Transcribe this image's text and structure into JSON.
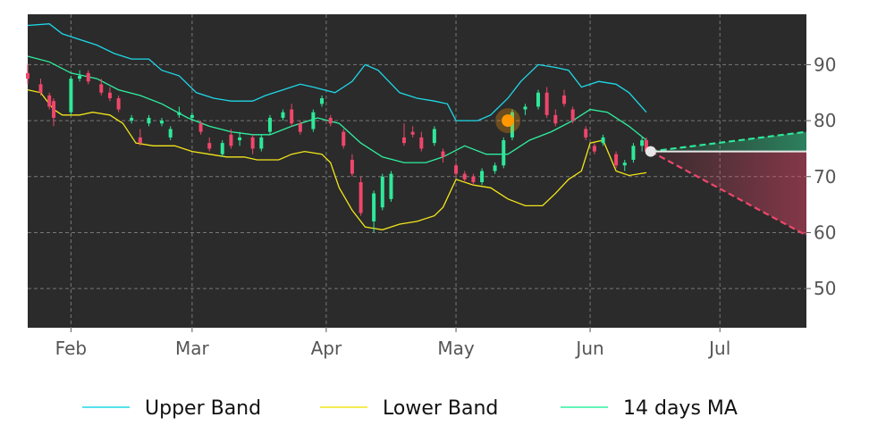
{
  "chart_data": {
    "type": "candlestick",
    "x_tick_labels": [
      "Feb",
      "Mar",
      "Apr",
      "May",
      "Jun",
      "Jul"
    ],
    "x_tick_dates": [
      "2021-02-01",
      "2021-03-01",
      "2021-04-01",
      "2021-05-01",
      "2021-06-01",
      "2021-07-01"
    ],
    "x_range": [
      "2021-01-22",
      "2021-07-21"
    ],
    "y_tick_labels": [
      "50",
      "60",
      "70",
      "80",
      "90"
    ],
    "y_ticks": [
      50,
      60,
      70,
      80,
      90
    ],
    "ylim": [
      43,
      99
    ],
    "y_axis_position": "right",
    "grid": true,
    "legend_position": "bottom",
    "colors": {
      "background": "#2b2b2b",
      "grid": "#8a8a8a",
      "up_candle": "#2ee89a",
      "down_candle": "#f0466b",
      "upper_band": "#1ed8e8",
      "lower_band": "#f2e61a",
      "ma": "#2ef0a0",
      "marker": "#ff9800",
      "forecast_up": "#2ee89a",
      "forecast_down": "#f0466b",
      "current_level": "#e6e6e6"
    },
    "series": [
      {
        "name": "Upper Band",
        "color": "#1ed8e8",
        "points": [
          [
            "2021-01-22",
            97.0
          ],
          [
            "2021-01-27",
            97.3
          ],
          [
            "2021-01-30",
            95.5
          ],
          [
            "2021-02-03",
            94.5
          ],
          [
            "2021-02-07",
            93.5
          ],
          [
            "2021-02-11",
            92.0
          ],
          [
            "2021-02-15",
            91.0
          ],
          [
            "2021-02-19",
            91.0
          ],
          [
            "2021-02-22",
            89.0
          ],
          [
            "2021-02-26",
            88.0
          ],
          [
            "2021-03-02",
            85.0
          ],
          [
            "2021-03-06",
            84.0
          ],
          [
            "2021-03-10",
            83.5
          ],
          [
            "2021-03-15",
            83.5
          ],
          [
            "2021-03-18",
            84.5
          ],
          [
            "2021-03-22",
            85.5
          ],
          [
            "2021-03-26",
            86.5
          ],
          [
            "2021-03-29",
            86.0
          ],
          [
            "2021-04-03",
            85.0
          ],
          [
            "2021-04-07",
            87.0
          ],
          [
            "2021-04-10",
            90.0
          ],
          [
            "2021-04-13",
            89.0
          ],
          [
            "2021-04-18",
            85.0
          ],
          [
            "2021-04-22",
            84.0
          ],
          [
            "2021-04-26",
            83.5
          ],
          [
            "2021-04-29",
            83.0
          ],
          [
            "2021-05-01",
            80.0
          ],
          [
            "2021-05-06",
            80.0
          ],
          [
            "2021-05-09",
            81.0
          ],
          [
            "2021-05-13",
            84.0
          ],
          [
            "2021-05-16",
            87.0
          ],
          [
            "2021-05-20",
            90.0
          ],
          [
            "2021-05-24",
            89.5
          ],
          [
            "2021-05-27",
            89.0
          ],
          [
            "2021-05-30",
            86.0
          ],
          [
            "2021-06-03",
            87.0
          ],
          [
            "2021-06-07",
            86.5
          ],
          [
            "2021-06-10",
            85.0
          ],
          [
            "2021-06-14",
            81.5
          ]
        ]
      },
      {
        "name": "Lower Band",
        "color": "#f2e61a",
        "points": [
          [
            "2021-01-22",
            85.5
          ],
          [
            "2021-01-25",
            85.0
          ],
          [
            "2021-01-28",
            82.0
          ],
          [
            "2021-01-30",
            81.0
          ],
          [
            "2021-02-03",
            81.0
          ],
          [
            "2021-02-06",
            81.5
          ],
          [
            "2021-02-10",
            81.0
          ],
          [
            "2021-02-13",
            79.5
          ],
          [
            "2021-02-16",
            76.0
          ],
          [
            "2021-02-20",
            75.5
          ],
          [
            "2021-02-25",
            75.5
          ],
          [
            "2021-03-01",
            74.5
          ],
          [
            "2021-03-05",
            74.0
          ],
          [
            "2021-03-09",
            73.5
          ],
          [
            "2021-03-13",
            73.5
          ],
          [
            "2021-03-16",
            73.0
          ],
          [
            "2021-03-21",
            73.0
          ],
          [
            "2021-03-24",
            74.0
          ],
          [
            "2021-03-27",
            74.5
          ],
          [
            "2021-03-31",
            74.0
          ],
          [
            "2021-04-02",
            72.5
          ],
          [
            "2021-04-04",
            68.0
          ],
          [
            "2021-04-07",
            64.0
          ],
          [
            "2021-04-10",
            61.0
          ],
          [
            "2021-04-14",
            60.5
          ],
          [
            "2021-04-18",
            61.5
          ],
          [
            "2021-04-22",
            62.0
          ],
          [
            "2021-04-26",
            63.0
          ],
          [
            "2021-04-28",
            64.5
          ],
          [
            "2021-05-01",
            69.5
          ],
          [
            "2021-05-05",
            68.5
          ],
          [
            "2021-05-09",
            68.0
          ],
          [
            "2021-05-13",
            66.0
          ],
          [
            "2021-05-17",
            64.8
          ],
          [
            "2021-05-21",
            64.8
          ],
          [
            "2021-05-24",
            67.0
          ],
          [
            "2021-05-27",
            69.5
          ],
          [
            "2021-05-30",
            71.0
          ],
          [
            "2021-06-01",
            76.0
          ],
          [
            "2021-06-04",
            76.5
          ],
          [
            "2021-06-07",
            71.0
          ],
          [
            "2021-06-10",
            70.2
          ],
          [
            "2021-06-14",
            70.7
          ]
        ]
      },
      {
        "name": "14 days MA",
        "color": "#2ef0a0",
        "points": [
          [
            "2021-01-22",
            91.5
          ],
          [
            "2021-01-27",
            90.5
          ],
          [
            "2021-02-01",
            88.5
          ],
          [
            "2021-02-07",
            87.5
          ],
          [
            "2021-02-12",
            85.5
          ],
          [
            "2021-02-17",
            84.5
          ],
          [
            "2021-02-22",
            83.0
          ],
          [
            "2021-02-28",
            80.5
          ],
          [
            "2021-03-05",
            79.0
          ],
          [
            "2021-03-10",
            78.0
          ],
          [
            "2021-03-15",
            77.5
          ],
          [
            "2021-03-19",
            77.5
          ],
          [
            "2021-03-24",
            79.0
          ],
          [
            "2021-03-30",
            80.5
          ],
          [
            "2021-04-04",
            79.5
          ],
          [
            "2021-04-09",
            76.0
          ],
          [
            "2021-04-14",
            73.5
          ],
          [
            "2021-04-19",
            72.5
          ],
          [
            "2021-04-24",
            72.5
          ],
          [
            "2021-04-28",
            73.5
          ],
          [
            "2021-05-03",
            75.5
          ],
          [
            "2021-05-08",
            74.0
          ],
          [
            "2021-05-13",
            74.0
          ],
          [
            "2021-05-18",
            76.5
          ],
          [
            "2021-05-23",
            78.0
          ],
          [
            "2021-05-28",
            80.0
          ],
          [
            "2021-06-01",
            82.0
          ],
          [
            "2021-06-05",
            81.5
          ],
          [
            "2021-06-10",
            79.0
          ],
          [
            "2021-06-14",
            76.5
          ]
        ]
      }
    ],
    "candles": [
      [
        "2021-01-22",
        88.5,
        90.0,
        86.5,
        87.5
      ],
      [
        "2021-01-25",
        86.5,
        87.5,
        84.5,
        85.0
      ],
      [
        "2021-01-27",
        84.5,
        85.0,
        82.0,
        82.5
      ],
      [
        "2021-01-28",
        83.5,
        84.0,
        79.0,
        80.5
      ],
      [
        "2021-02-01",
        81.5,
        88.0,
        81.0,
        87.5
      ],
      [
        "2021-02-03",
        87.5,
        89.0,
        87.0,
        88.0
      ],
      [
        "2021-02-05",
        88.5,
        89.0,
        86.5,
        87.0
      ],
      [
        "2021-02-08",
        86.5,
        87.5,
        84.5,
        85.0
      ],
      [
        "2021-02-10",
        85.0,
        86.0,
        83.5,
        84.0
      ],
      [
        "2021-02-12",
        84.0,
        84.5,
        81.5,
        82.0
      ],
      [
        "2021-02-15",
        80.0,
        81.0,
        79.5,
        80.5
      ],
      [
        "2021-02-17",
        77.0,
        78.5,
        75.5,
        76.0
      ],
      [
        "2021-02-19",
        79.5,
        81.0,
        79.0,
        80.5
      ],
      [
        "2021-02-22",
        79.5,
        80.5,
        79.0,
        80.0
      ],
      [
        "2021-02-24",
        77.0,
        79.0,
        76.5,
        78.5
      ],
      [
        "2021-02-26",
        81.0,
        82.5,
        80.5,
        81.5
      ],
      [
        "2021-03-01",
        80.5,
        81.5,
        80.0,
        81.0
      ],
      [
        "2021-03-03",
        79.5,
        80.0,
        77.5,
        78.0
      ],
      [
        "2021-03-05",
        76.0,
        77.0,
        74.5,
        75.0
      ],
      [
        "2021-03-08",
        74.0,
        76.5,
        73.5,
        76.0
      ],
      [
        "2021-03-10",
        77.5,
        78.5,
        75.0,
        75.5
      ],
      [
        "2021-03-12",
        76.5,
        78.0,
        75.5,
        77.0
      ],
      [
        "2021-03-15",
        77.0,
        77.5,
        74.0,
        75.0
      ],
      [
        "2021-03-17",
        75.0,
        77.5,
        74.5,
        77.0
      ],
      [
        "2021-03-19",
        78.0,
        81.0,
        77.5,
        80.5
      ],
      [
        "2021-03-22",
        80.5,
        82.0,
        80.0,
        81.5
      ],
      [
        "2021-03-24",
        82.0,
        83.0,
        79.0,
        79.5
      ],
      [
        "2021-03-26",
        79.5,
        80.0,
        77.5,
        78.0
      ],
      [
        "2021-03-29",
        78.5,
        82.0,
        78.0,
        81.5
      ],
      [
        "2021-03-31",
        83.0,
        84.5,
        82.5,
        84.0
      ],
      [
        "2021-04-02",
        80.5,
        81.0,
        79.0,
        79.5
      ],
      [
        "2021-04-05",
        78.0,
        78.5,
        75.0,
        75.5
      ],
      [
        "2021-04-07",
        73.0,
        74.0,
        70.0,
        70.5
      ],
      [
        "2021-04-09",
        69.0,
        70.0,
        63.0,
        63.5
      ],
      [
        "2021-04-12",
        62.0,
        67.5,
        60.0,
        67.0
      ],
      [
        "2021-04-14",
        64.5,
        70.5,
        64.0,
        70.0
      ],
      [
        "2021-04-16",
        66.0,
        71.0,
        65.5,
        70.5
      ],
      [
        "2021-04-19",
        77.0,
        79.5,
        75.5,
        76.0
      ],
      [
        "2021-04-21",
        78.0,
        79.0,
        77.0,
        77.5
      ],
      [
        "2021-04-23",
        77.0,
        78.0,
        74.5,
        75.0
      ],
      [
        "2021-04-26",
        76.0,
        79.0,
        75.5,
        78.5
      ],
      [
        "2021-04-28",
        74.5,
        75.0,
        72.5,
        73.5
      ],
      [
        "2021-05-01",
        72.0,
        72.5,
        70.0,
        70.5
      ],
      [
        "2021-05-03",
        70.5,
        71.0,
        69.0,
        69.5
      ],
      [
        "2021-05-05",
        70.0,
        70.5,
        68.5,
        69.0
      ],
      [
        "2021-05-07",
        69.0,
        71.5,
        68.5,
        71.0
      ],
      [
        "2021-05-10",
        71.0,
        72.5,
        70.5,
        72.0
      ],
      [
        "2021-05-12",
        72.0,
        77.0,
        71.5,
        76.5
      ],
      [
        "2021-05-14",
        77.0,
        82.0,
        76.5,
        81.5
      ],
      [
        "2021-05-17",
        82.0,
        83.0,
        81.0,
        82.5
      ],
      [
        "2021-05-20",
        82.5,
        85.5,
        82.0,
        85.0
      ],
      [
        "2021-05-22",
        85.0,
        86.0,
        80.5,
        81.0
      ],
      [
        "2021-05-24",
        81.0,
        82.0,
        79.0,
        79.5
      ],
      [
        "2021-05-26",
        84.5,
        85.5,
        82.5,
        83.0
      ],
      [
        "2021-05-28",
        82.0,
        82.5,
        79.5,
        80.0
      ],
      [
        "2021-05-31",
        78.5,
        79.0,
        76.5,
        77.0
      ],
      [
        "2021-06-02",
        75.5,
        76.0,
        74.0,
        74.5
      ],
      [
        "2021-06-04",
        76.0,
        77.5,
        75.5,
        77.0
      ],
      [
        "2021-06-07",
        74.0,
        74.5,
        71.5,
        72.0
      ],
      [
        "2021-06-09",
        72.0,
        73.0,
        71.0,
        72.5
      ],
      [
        "2021-06-11",
        73.0,
        76.0,
        72.5,
        75.5
      ],
      [
        "2021-06-13",
        75.5,
        77.0,
        74.5,
        76.5
      ],
      [
        "2021-06-14",
        76.5,
        77.0,
        74.0,
        74.5
      ]
    ],
    "marker": {
      "date": "2021-05-13",
      "value": 80
    },
    "current": {
      "date": "2021-06-15",
      "value": 74.5
    },
    "forecast": {
      "end_date": "2021-07-21",
      "upper_value": 78.0,
      "level_value": 74.5,
      "lower_value": 59.5
    },
    "legend": [
      {
        "name": "Upper Band",
        "color": "#1ed8e8"
      },
      {
        "name": "Lower Band",
        "color": "#f2e61a"
      },
      {
        "name": "14 days MA",
        "color": "#2ef0a0"
      }
    ]
  }
}
